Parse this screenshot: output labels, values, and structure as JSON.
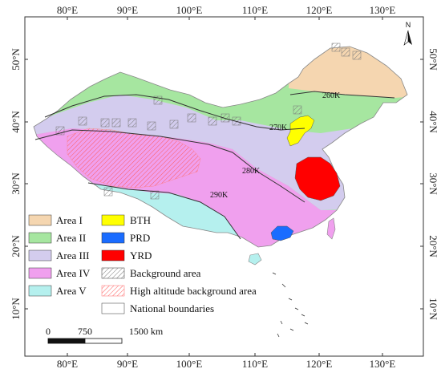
{
  "colors": {
    "area_i": "#f5d6b0",
    "area_ii": "#a6e6a0",
    "area_iii": "#d3ccee",
    "area_iv": "#f0a0ee",
    "area_v": "#b5f0ee",
    "bth": "#ffff00",
    "prd": "#1a6cff",
    "yrd": "#ff0000",
    "background_hatch": "#8a8a8a",
    "high_altitude_hatch": "#ff6a6a",
    "border": "#888888"
  },
  "axes": {
    "top_labels": [
      "80°E",
      "90°E",
      "100°E",
      "110°E",
      "120°E",
      "130°E"
    ],
    "bottom_labels": [
      "80°E",
      "90°E",
      "100°E",
      "110°E",
      "120°E",
      "130°E"
    ],
    "left_labels": [
      "50°N",
      "40°N",
      "30°N",
      "20°N",
      "10°N"
    ],
    "right_labels": [
      "50°N",
      "40°N",
      "30°N",
      "20°N",
      "10°N"
    ]
  },
  "isotherms": [
    {
      "label": "260K"
    },
    {
      "label": "270K"
    },
    {
      "label": "280K"
    },
    {
      "label": "290K"
    }
  ],
  "legend": {
    "areas": [
      {
        "label": "Area I",
        "color_key": "area_i"
      },
      {
        "label": "Area II",
        "color_key": "area_ii"
      },
      {
        "label": "Area III",
        "color_key": "area_iii"
      },
      {
        "label": "Area IV",
        "color_key": "area_iv"
      },
      {
        "label": "Area V",
        "color_key": "area_v"
      }
    ],
    "regions": [
      {
        "label": "BTH",
        "color_key": "bth"
      },
      {
        "label": "PRD",
        "color_key": "prd"
      },
      {
        "label": "YRD",
        "color_key": "yrd"
      }
    ],
    "background_area": "Background area",
    "high_altitude": "High altitude background area",
    "national_boundaries": "National boundaries"
  },
  "scale_bar": {
    "labels": [
      "0",
      "750",
      "1500 km"
    ]
  },
  "north_arrow": {
    "label": "N",
    "icon": "north-arrow-icon"
  }
}
